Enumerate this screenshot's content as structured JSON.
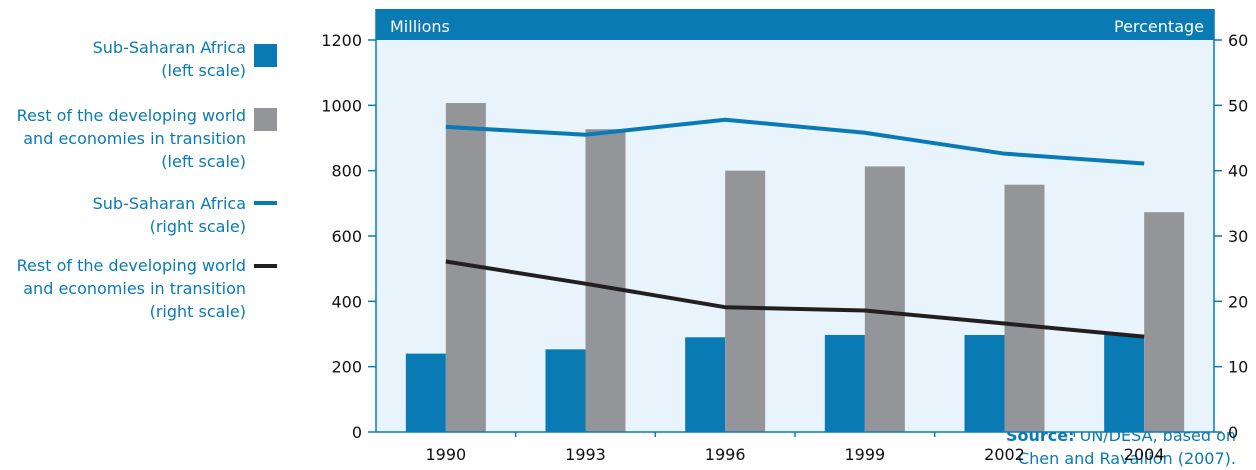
{
  "legend": {
    "items": [
      {
        "line1": "Sub-Saharan Africa",
        "line2": "(left scale)",
        "line3": "",
        "kind": "bar",
        "color": "#0a7ab5"
      },
      {
        "line1": "Rest of the developing world",
        "line2": "and economies in transition",
        "line3": "(left scale)",
        "kind": "bar",
        "color": "#939598"
      },
      {
        "line1": "Sub-Saharan Africa",
        "line2": "(right scale)",
        "line3": "",
        "kind": "line",
        "color": "#0a7ab5"
      },
      {
        "line1": "Rest of the developing world",
        "line2": "and economies in transition",
        "line3": "(right scale)",
        "kind": "line",
        "color": "#231f20"
      }
    ]
  },
  "source": {
    "label": "Source:",
    "line1": "UN/DESA, based on",
    "line2": "Chen and Ravallion (2007)."
  },
  "chart_data": {
    "type": "bar",
    "categories": [
      "1990",
      "1993",
      "1996",
      "1999",
      "2002",
      "2004"
    ],
    "left_axis": {
      "label": "Millions",
      "ylim": [
        0,
        1200
      ],
      "ticks": [
        0,
        200,
        400,
        600,
        800,
        1000,
        1200
      ]
    },
    "right_axis": {
      "label": "Percentage",
      "ylim": [
        0,
        60
      ],
      "ticks": [
        0,
        10,
        20,
        30,
        40,
        50,
        60
      ]
    },
    "bar_series": [
      {
        "name": "Sub-Saharan Africa (left scale)",
        "color": "#0a7ab5",
        "values": [
          240,
          253,
          290,
          297,
          297,
          297
        ]
      },
      {
        "name": "Rest of the developing world and economies in transition (left scale)",
        "color": "#939598",
        "values": [
          1007,
          927,
          800,
          813,
          757,
          673
        ]
      }
    ],
    "line_series": [
      {
        "name": "Sub-Saharan Africa (right scale)",
        "color": "#0a7ab5",
        "values": [
          46.7,
          45.5,
          47.8,
          45.8,
          42.6,
          41.1
        ]
      },
      {
        "name": "Rest of the developing world and economies in transition (right scale)",
        "color": "#231f20",
        "values": [
          26.1,
          22.7,
          19.1,
          18.6,
          16.6,
          14.6
        ]
      }
    ],
    "header_color": "#0a7ab5",
    "plot_bg": "#e8f3fb",
    "grid": false
  }
}
